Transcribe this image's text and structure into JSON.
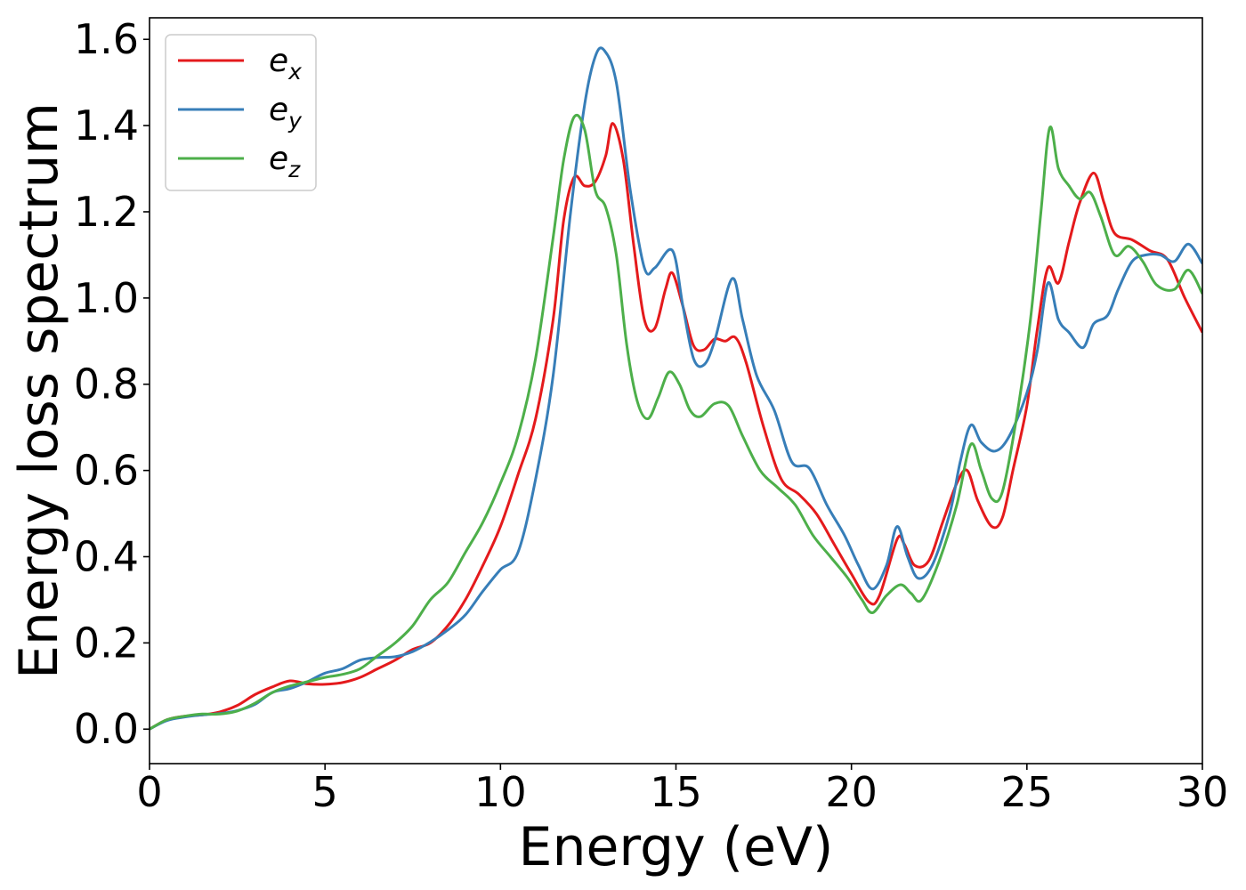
{
  "chart_data": {
    "type": "line",
    "title": "",
    "xlabel": "Energy (eV)",
    "ylabel": "Energy loss spectrum",
    "xlim": [
      0,
      30
    ],
    "ylim": [
      -0.08,
      1.65
    ],
    "xticks": [
      0,
      5,
      10,
      15,
      20,
      25,
      30
    ],
    "yticks": [
      0.0,
      0.2,
      0.4,
      0.6,
      0.8,
      1.0,
      1.2,
      1.4,
      1.6
    ],
    "xtick_labels": [
      "0",
      "5",
      "10",
      "15",
      "20",
      "25",
      "30"
    ],
    "ytick_labels": [
      "0.0",
      "0.2",
      "0.4",
      "0.6",
      "0.8",
      "1.0",
      "1.2",
      "1.4",
      "1.6"
    ],
    "grid": false,
    "legend_position": "top-left",
    "series": [
      {
        "name": "e_x",
        "base": "e",
        "sub": "x",
        "color": "#e41a1c",
        "points": [
          [
            0,
            0
          ],
          [
            0.5,
            0.022
          ],
          [
            1,
            0.03
          ],
          [
            1.5,
            0.033
          ],
          [
            2,
            0.04
          ],
          [
            2.5,
            0.055
          ],
          [
            3,
            0.08
          ],
          [
            3.5,
            0.098
          ],
          [
            4,
            0.112
          ],
          [
            4.5,
            0.105
          ],
          [
            5,
            0.104
          ],
          [
            5.5,
            0.108
          ],
          [
            6,
            0.12
          ],
          [
            6.5,
            0.14
          ],
          [
            7,
            0.16
          ],
          [
            7.5,
            0.185
          ],
          [
            8,
            0.2
          ],
          [
            8.5,
            0.24
          ],
          [
            9,
            0.3
          ],
          [
            9.5,
            0.38
          ],
          [
            10,
            0.47
          ],
          [
            10.5,
            0.59
          ],
          [
            11,
            0.72
          ],
          [
            11.5,
            0.95
          ],
          [
            11.8,
            1.18
          ],
          [
            12.1,
            1.28
          ],
          [
            12.4,
            1.26
          ],
          [
            12.7,
            1.27
          ],
          [
            13,
            1.33
          ],
          [
            13.2,
            1.405
          ],
          [
            13.5,
            1.32
          ],
          [
            13.8,
            1.12
          ],
          [
            14.1,
            0.95
          ],
          [
            14.4,
            0.93
          ],
          [
            14.7,
            1.02
          ],
          [
            14.9,
            1.058
          ],
          [
            15.2,
            0.98
          ],
          [
            15.5,
            0.89
          ],
          [
            15.8,
            0.88
          ],
          [
            16.1,
            0.905
          ],
          [
            16.4,
            0.9
          ],
          [
            16.7,
            0.908
          ],
          [
            17,
            0.85
          ],
          [
            17.5,
            0.7
          ],
          [
            18,
            0.58
          ],
          [
            18.5,
            0.545
          ],
          [
            19,
            0.5
          ],
          [
            19.5,
            0.43
          ],
          [
            20,
            0.36
          ],
          [
            20.5,
            0.295
          ],
          [
            20.8,
            0.31
          ],
          [
            21.3,
            0.44
          ],
          [
            21.5,
            0.43
          ],
          [
            21.8,
            0.38
          ],
          [
            22.2,
            0.39
          ],
          [
            22.6,
            0.48
          ],
          [
            23,
            0.57
          ],
          [
            23.3,
            0.6
          ],
          [
            23.6,
            0.53
          ],
          [
            24,
            0.47
          ],
          [
            24.3,
            0.49
          ],
          [
            24.6,
            0.6
          ],
          [
            25,
            0.75
          ],
          [
            25.3,
            0.93
          ],
          [
            25.6,
            1.07
          ],
          [
            25.9,
            1.035
          ],
          [
            26.2,
            1.13
          ],
          [
            26.5,
            1.22
          ],
          [
            26.9,
            1.29
          ],
          [
            27.2,
            1.22
          ],
          [
            27.5,
            1.15
          ],
          [
            28,
            1.135
          ],
          [
            28.5,
            1.11
          ],
          [
            29,
            1.09
          ],
          [
            29.5,
            1.0
          ],
          [
            30,
            0.92
          ]
        ]
      },
      {
        "name": "e_y",
        "base": "e",
        "sub": "y",
        "color": "#377eb8",
        "points": [
          [
            0,
            0
          ],
          [
            0.5,
            0.02
          ],
          [
            1,
            0.028
          ],
          [
            1.5,
            0.033
          ],
          [
            2,
            0.036
          ],
          [
            2.5,
            0.043
          ],
          [
            3,
            0.057
          ],
          [
            3.5,
            0.085
          ],
          [
            4,
            0.094
          ],
          [
            4.5,
            0.11
          ],
          [
            5,
            0.13
          ],
          [
            5.5,
            0.14
          ],
          [
            6,
            0.16
          ],
          [
            6.5,
            0.166
          ],
          [
            7,
            0.168
          ],
          [
            7.5,
            0.18
          ],
          [
            8,
            0.202
          ],
          [
            8.5,
            0.23
          ],
          [
            9,
            0.265
          ],
          [
            9.5,
            0.32
          ],
          [
            10,
            0.37
          ],
          [
            10.5,
            0.41
          ],
          [
            11,
            0.58
          ],
          [
            11.5,
            0.82
          ],
          [
            12,
            1.2
          ],
          [
            12.4,
            1.45
          ],
          [
            12.7,
            1.56
          ],
          [
            12.95,
            1.575
          ],
          [
            13.3,
            1.5
          ],
          [
            13.7,
            1.25
          ],
          [
            14.1,
            1.07
          ],
          [
            14.4,
            1.07
          ],
          [
            14.9,
            1.11
          ],
          [
            15.2,
            0.98
          ],
          [
            15.5,
            0.86
          ],
          [
            15.8,
            0.845
          ],
          [
            16.1,
            0.9
          ],
          [
            16.6,
            1.045
          ],
          [
            16.9,
            0.95
          ],
          [
            17.3,
            0.82
          ],
          [
            17.8,
            0.74
          ],
          [
            18.3,
            0.62
          ],
          [
            18.8,
            0.605
          ],
          [
            19.3,
            0.52
          ],
          [
            19.8,
            0.45
          ],
          [
            20.2,
            0.38
          ],
          [
            20.6,
            0.325
          ],
          [
            21,
            0.38
          ],
          [
            21.3,
            0.47
          ],
          [
            21.6,
            0.4
          ],
          [
            21.9,
            0.35
          ],
          [
            22.3,
            0.38
          ],
          [
            22.8,
            0.5
          ],
          [
            23.1,
            0.62
          ],
          [
            23.4,
            0.705
          ],
          [
            23.7,
            0.665
          ],
          [
            24.1,
            0.645
          ],
          [
            24.5,
            0.68
          ],
          [
            25,
            0.78
          ],
          [
            25.3,
            0.88
          ],
          [
            25.6,
            1.035
          ],
          [
            25.9,
            0.95
          ],
          [
            26.2,
            0.92
          ],
          [
            26.6,
            0.885
          ],
          [
            26.9,
            0.94
          ],
          [
            27.3,
            0.96
          ],
          [
            27.6,
            1.02
          ],
          [
            28,
            1.085
          ],
          [
            28.4,
            1.1
          ],
          [
            28.8,
            1.1
          ],
          [
            29.2,
            1.085
          ],
          [
            29.6,
            1.125
          ],
          [
            30,
            1.08
          ]
        ]
      },
      {
        "name": "e_z",
        "base": "e",
        "sub": "z",
        "color": "#4daf4a",
        "points": [
          [
            0,
            0
          ],
          [
            0.5,
            0.022
          ],
          [
            1,
            0.03
          ],
          [
            1.5,
            0.035
          ],
          [
            2,
            0.035
          ],
          [
            2.5,
            0.042
          ],
          [
            3,
            0.06
          ],
          [
            3.5,
            0.085
          ],
          [
            4,
            0.1
          ],
          [
            4.5,
            0.11
          ],
          [
            5,
            0.12
          ],
          [
            5.5,
            0.127
          ],
          [
            6,
            0.14
          ],
          [
            6.5,
            0.17
          ],
          [
            7,
            0.2
          ],
          [
            7.5,
            0.24
          ],
          [
            8,
            0.3
          ],
          [
            8.5,
            0.34
          ],
          [
            9,
            0.41
          ],
          [
            9.5,
            0.48
          ],
          [
            10,
            0.57
          ],
          [
            10.5,
            0.68
          ],
          [
            11,
            0.86
          ],
          [
            11.5,
            1.14
          ],
          [
            11.8,
            1.32
          ],
          [
            12.1,
            1.42
          ],
          [
            12.4,
            1.39
          ],
          [
            12.7,
            1.25
          ],
          [
            13,
            1.21
          ],
          [
            13.3,
            1.1
          ],
          [
            13.6,
            0.89
          ],
          [
            13.9,
            0.76
          ],
          [
            14.2,
            0.72
          ],
          [
            14.5,
            0.77
          ],
          [
            14.8,
            0.828
          ],
          [
            15.1,
            0.8
          ],
          [
            15.4,
            0.74
          ],
          [
            15.7,
            0.725
          ],
          [
            16.1,
            0.755
          ],
          [
            16.5,
            0.75
          ],
          [
            16.9,
            0.68
          ],
          [
            17.4,
            0.6
          ],
          [
            17.9,
            0.56
          ],
          [
            18.4,
            0.52
          ],
          [
            18.9,
            0.45
          ],
          [
            19.4,
            0.4
          ],
          [
            19.9,
            0.35
          ],
          [
            20.3,
            0.3
          ],
          [
            20.6,
            0.27
          ],
          [
            21,
            0.31
          ],
          [
            21.4,
            0.335
          ],
          [
            21.7,
            0.315
          ],
          [
            22,
            0.3
          ],
          [
            22.5,
            0.39
          ],
          [
            23,
            0.52
          ],
          [
            23.4,
            0.66
          ],
          [
            23.7,
            0.6
          ],
          [
            24,
            0.535
          ],
          [
            24.3,
            0.55
          ],
          [
            24.7,
            0.72
          ],
          [
            25.1,
            0.95
          ],
          [
            25.4,
            1.2
          ],
          [
            25.65,
            1.395
          ],
          [
            25.9,
            1.3
          ],
          [
            26.2,
            1.26
          ],
          [
            26.5,
            1.23
          ],
          [
            26.8,
            1.245
          ],
          [
            27.1,
            1.19
          ],
          [
            27.5,
            1.1
          ],
          [
            27.9,
            1.12
          ],
          [
            28.3,
            1.085
          ],
          [
            28.7,
            1.03
          ],
          [
            29.2,
            1.02
          ],
          [
            29.6,
            1.065
          ],
          [
            30,
            1.01
          ]
        ]
      }
    ]
  }
}
